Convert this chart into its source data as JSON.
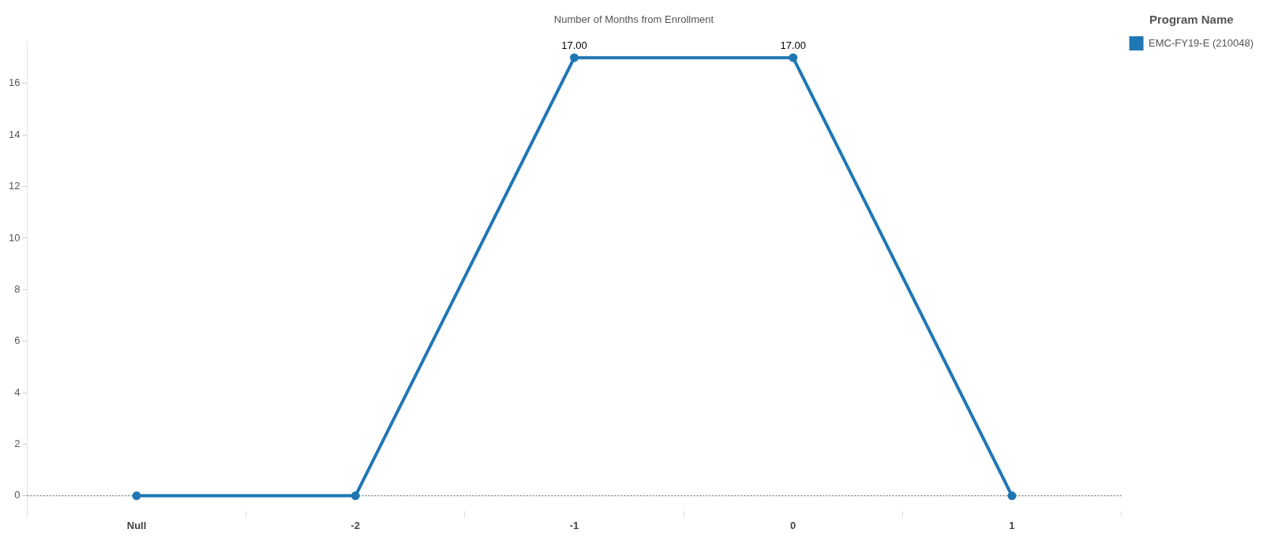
{
  "chart_data": {
    "type": "line",
    "title": "Number of Months from Enrollment",
    "legend_title": "Program Name",
    "categories": [
      "Null",
      "-2",
      "-1",
      "0",
      "1"
    ],
    "series": [
      {
        "name": "EMC-FY19-E (210048)",
        "color": "#1f77b4",
        "values": [
          0,
          0,
          17,
          17,
          0
        ],
        "value_labels": [
          null,
          null,
          "17.00",
          "17.00",
          null
        ]
      }
    ],
    "ylim": [
      -0.6,
      17.6
    ],
    "yticks": [
      0,
      2,
      4,
      6,
      8,
      10,
      12,
      14,
      16
    ],
    "grid": false,
    "legend": "top right",
    "marker": "circle",
    "line_style": "solid",
    "ref_lines": [
      {
        "axis": "y",
        "value": 0,
        "line_style": "dotted",
        "color": "#555555"
      }
    ]
  }
}
